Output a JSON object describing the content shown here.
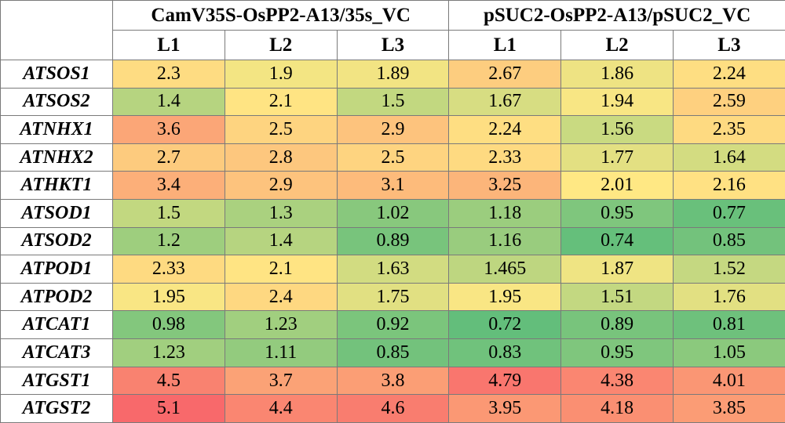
{
  "chart_data": {
    "type": "heatmap",
    "column_groups": [
      {
        "label": "CamV35S-OsPP2-A13/35s_VC",
        "columns": [
          "L1",
          "L2",
          "L3"
        ]
      },
      {
        "label": "pSUC2-OsPP2-A13/pSUC2_VC",
        "columns": [
          "L1",
          "L2",
          "L3"
        ]
      }
    ],
    "rows": [
      {
        "gene": "ATSOS1",
        "values": [
          "2.3",
          "1.9",
          "1.89",
          "2.67",
          "1.86",
          "2.24"
        ]
      },
      {
        "gene": "ATSOS2",
        "values": [
          "1.4",
          "2.1",
          "1.5",
          "1.67",
          "1.94",
          "2.59"
        ]
      },
      {
        "gene": "ATNHX1",
        "values": [
          "3.6",
          "2.5",
          "2.9",
          "2.24",
          "1.56",
          "2.35"
        ]
      },
      {
        "gene": "ATNHX2",
        "values": [
          "2.7",
          "2.8",
          "2.5",
          "2.33",
          "1.77",
          "1.64"
        ]
      },
      {
        "gene": "ATHKT1",
        "values": [
          "3.4",
          "2.9",
          "3.1",
          "3.25",
          "2.01",
          "2.16"
        ]
      },
      {
        "gene": "ATSOD1",
        "values": [
          "1.5",
          "1.3",
          "1.02",
          "1.18",
          "0.95",
          "0.77"
        ]
      },
      {
        "gene": "ATSOD2",
        "values": [
          "1.2",
          "1.4",
          "0.89",
          "1.16",
          "0.74",
          "0.85"
        ]
      },
      {
        "gene": "ATPOD1",
        "values": [
          "2.33",
          "2.1",
          "1.63",
          "1.465",
          "1.87",
          "1.52"
        ]
      },
      {
        "gene": "ATPOD2",
        "values": [
          "1.95",
          "2.4",
          "1.75",
          "1.95",
          "1.51",
          "1.76"
        ]
      },
      {
        "gene": "ATCAT1",
        "values": [
          "0.98",
          "1.23",
          "0.92",
          "0.72",
          "0.89",
          "0.81"
        ]
      },
      {
        "gene": "ATCAT3",
        "values": [
          "1.23",
          "1.11",
          "0.85",
          "0.83",
          "0.95",
          "1.05"
        ]
      },
      {
        "gene": "ATGST1",
        "values": [
          "4.5",
          "3.7",
          "3.8",
          "4.79",
          "4.38",
          "4.01"
        ]
      },
      {
        "gene": "ATGST2",
        "values": [
          "5.1",
          "4.4",
          "4.6",
          "3.95",
          "4.18",
          "3.85"
        ]
      }
    ],
    "color_scale": {
      "stops": [
        {
          "value": 0.72,
          "color": "#63BE7B"
        },
        {
          "value": 2.0,
          "color": "#FFE884"
        },
        {
          "value": 5.1,
          "color": "#F8696B"
        }
      ]
    }
  }
}
